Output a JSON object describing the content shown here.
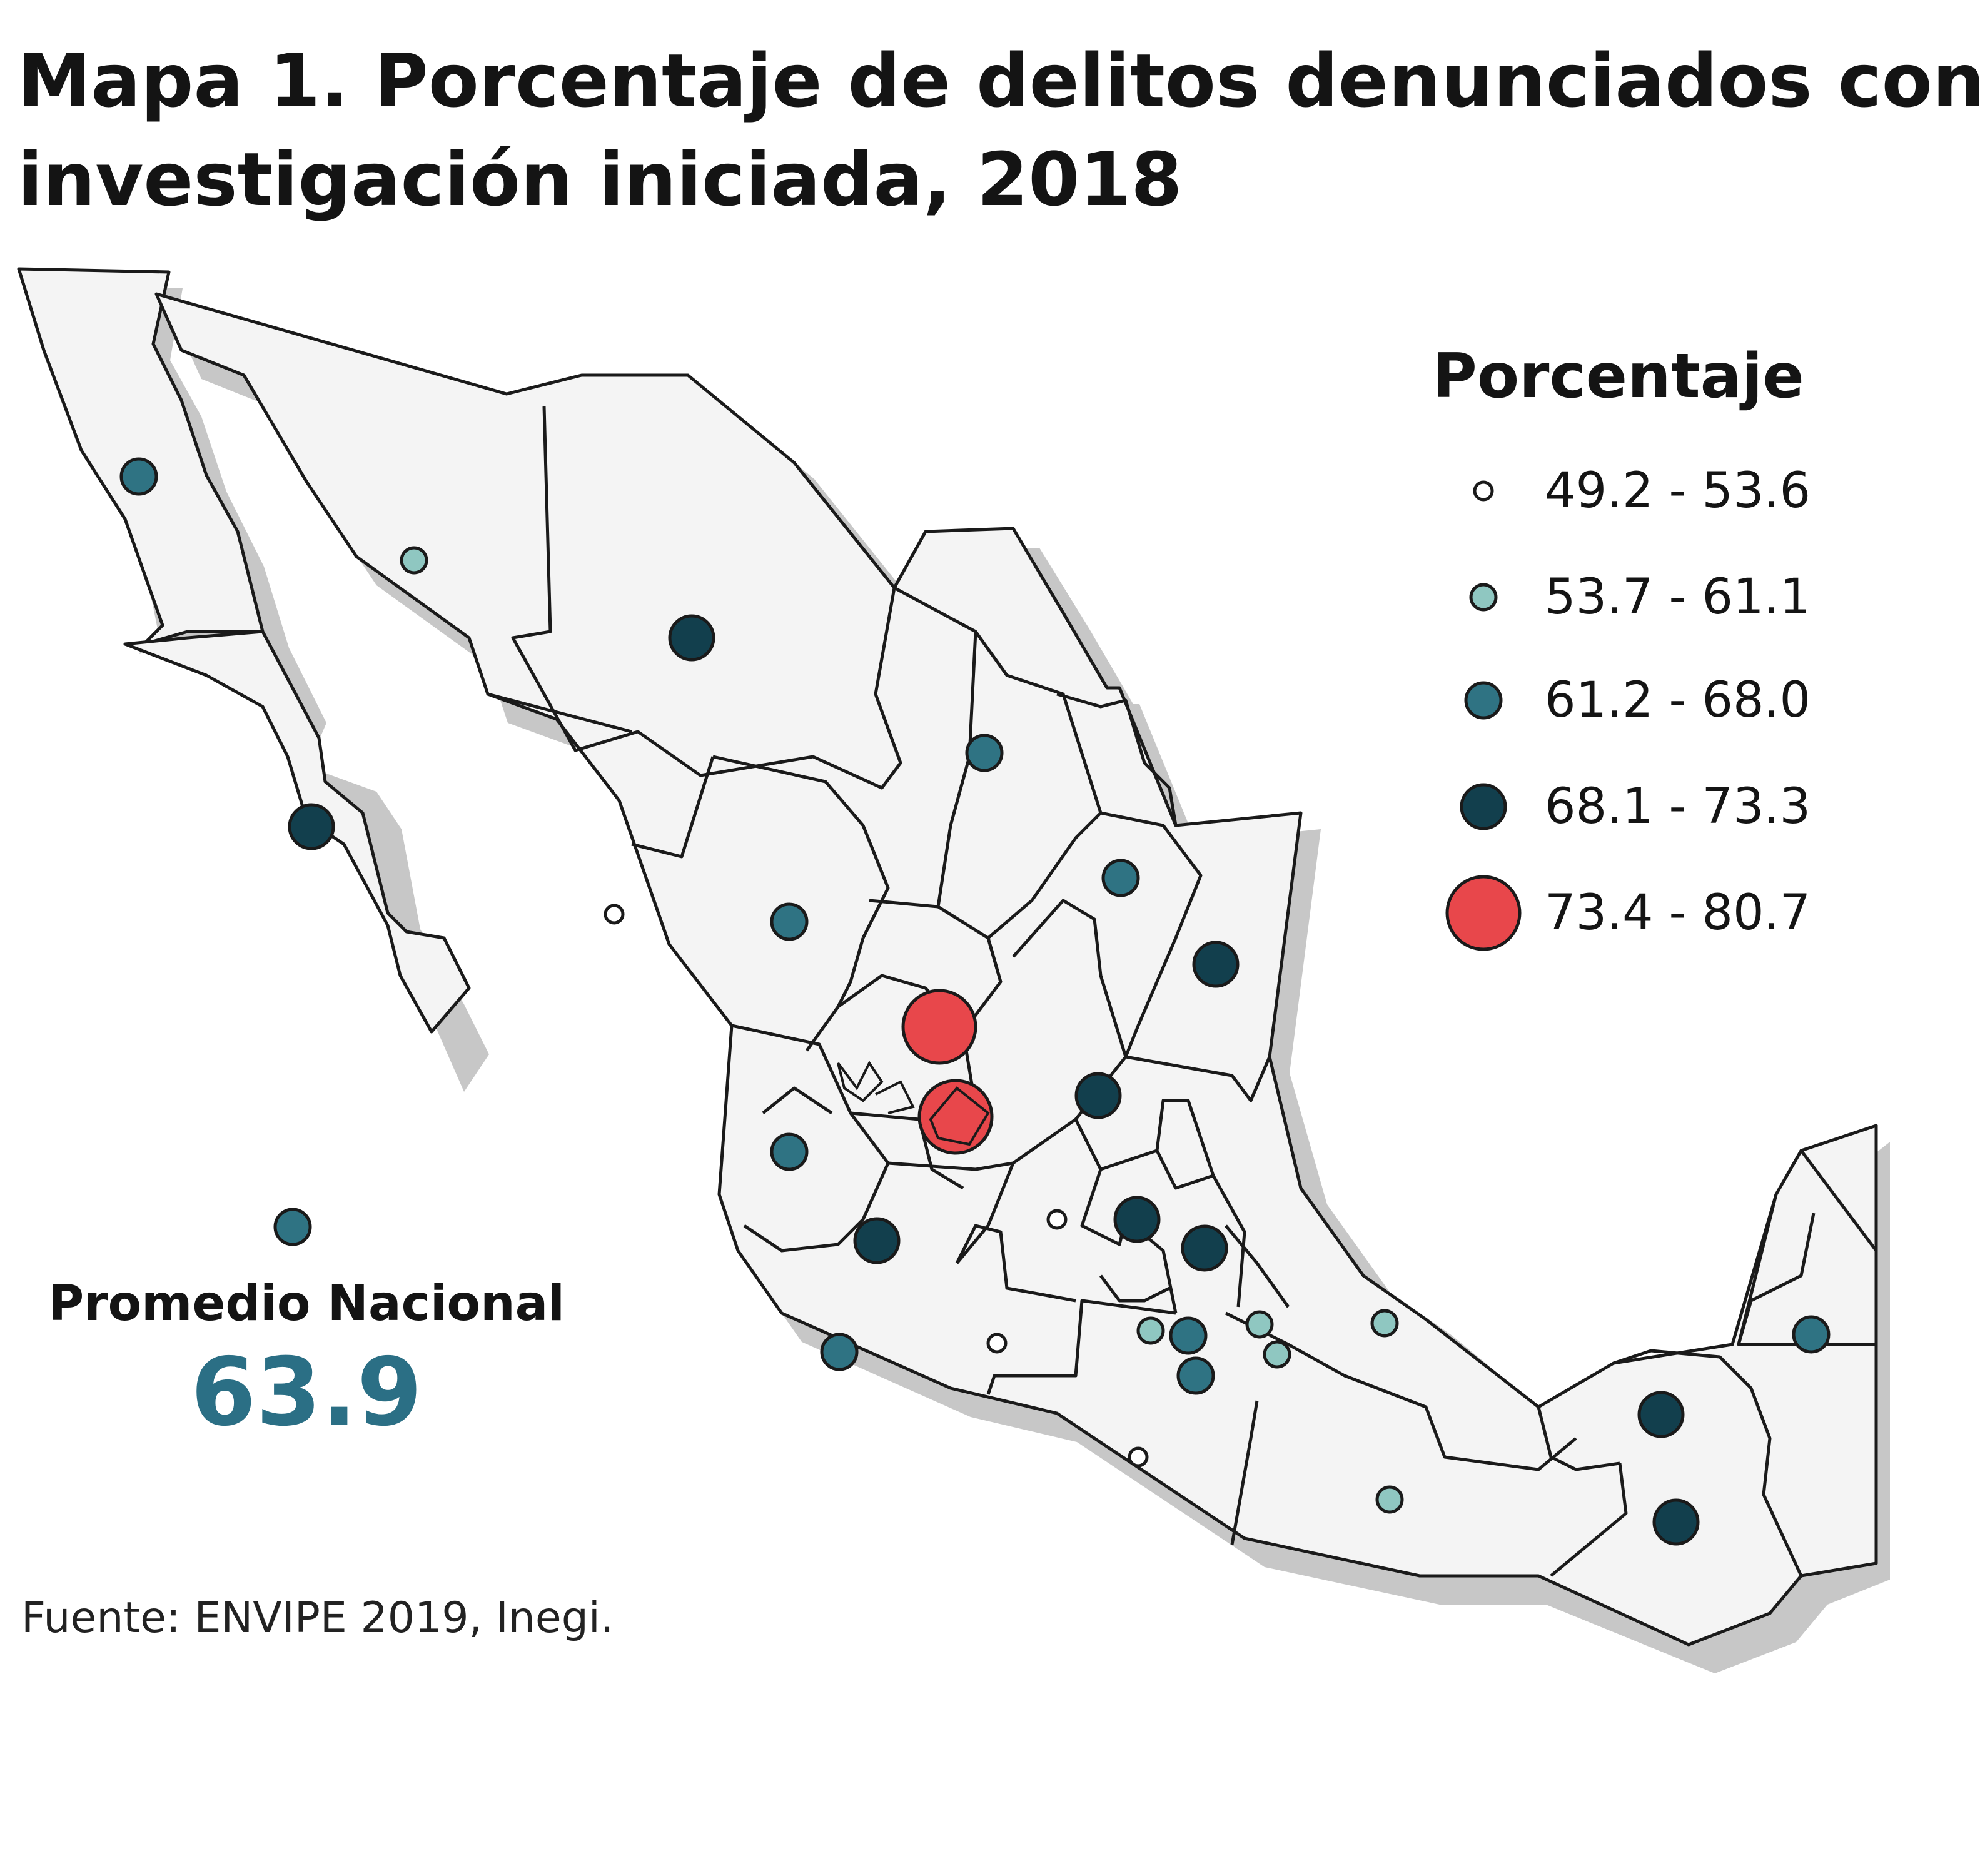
{
  "title": {
    "line1": "Mapa 1. Porcentaje de delitos denunciados con",
    "line2": "investigación iniciada, 2018"
  },
  "legend": {
    "title": "Porcentaje",
    "classes": [
      {
        "label": "49.2 - 53.6",
        "color": "#ffffff"
      },
      {
        "label": "53.7 - 61.1",
        "color": "#8fc7c1"
      },
      {
        "label": "61.2 - 68.0",
        "color": "#2f7383"
      },
      {
        "label": "68.1 - 73.3",
        "color": "#123f4d"
      },
      {
        "label": "73.4 - 80.7",
        "color": "#e8474b"
      }
    ]
  },
  "national_average": {
    "label": "Promedio Nacional",
    "value": "63.9"
  },
  "source": "Fuente: ENVIPE 2019, Inegi.",
  "colors": {
    "land": "#f4f4f4",
    "border": "#1a1a1a",
    "shadow": "#c7c7c7"
  }
}
